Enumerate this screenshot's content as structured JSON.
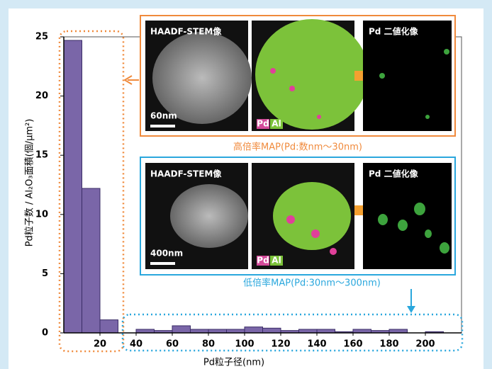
{
  "chart_data": {
    "type": "histogram",
    "x_label": "Pd粒子径(nm)",
    "y_label": "Pd粒子数 / Al₂O₃面積(個/μm²)",
    "bins": [
      0,
      10,
      20,
      30,
      40,
      50,
      60,
      70,
      80,
      90,
      100,
      110,
      120,
      130,
      140,
      150,
      160,
      170,
      180,
      190,
      200,
      210
    ],
    "values": [
      24.7,
      12.2,
      1.1,
      0,
      0.3,
      0.2,
      0.6,
      0.3,
      0.3,
      0.3,
      0.5,
      0.4,
      0.2,
      0.3,
      0.3,
      0.1,
      0.3,
      0.2,
      0.3,
      0,
      0.1
    ],
    "color": "#7a66a8",
    "xlim": [
      0,
      220
    ],
    "xticks": [
      20,
      40,
      60,
      80,
      100,
      120,
      140,
      160,
      180,
      200
    ],
    "ylim": [
      0,
      25
    ],
    "yticks": [
      0,
      5,
      10,
      15,
      20,
      25
    ],
    "insets": [
      {
        "panel_1": "HAADF-STEM像",
        "scale": "60nm",
        "legend_1": "Pd",
        "legend_2": "Al",
        "panel_3": "Pd 二値化像",
        "caption": "高倍率MAP(Pd:数nm〜30nm)"
      },
      {
        "panel_1": "HAADF-STEM像",
        "scale": "400nm",
        "legend_1": "Pd",
        "legend_2": "Al",
        "panel_3": "Pd 二値化像",
        "caption": "低倍率MAP(Pd:30nm〜300nm)"
      }
    ]
  }
}
